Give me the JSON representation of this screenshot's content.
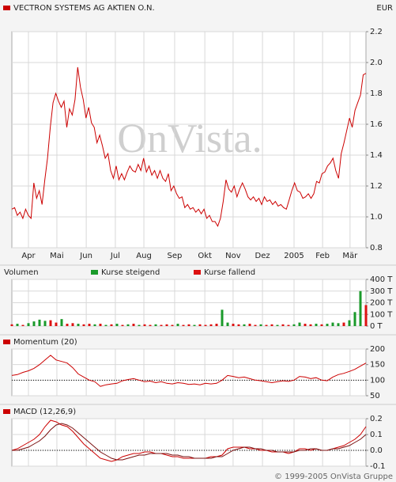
{
  "watermark": "OnVista.",
  "footer": "© 1999-2005 OnVista Gruppe",
  "chart_data": [
    {
      "type": "line",
      "title": "VECTRON SYSTEMS AG AKTIEN O.N.",
      "currency": "EUR",
      "xlim": [
        0,
        129
      ],
      "xticks": [
        {
          "value": 6.05,
          "label": "Apr"
        },
        {
          "value": 16.4,
          "label": "Mai"
        },
        {
          "value": 27.1,
          "label": "Jun"
        },
        {
          "value": 37.7,
          "label": "Jul"
        },
        {
          "value": 48.1,
          "label": "Aug"
        },
        {
          "value": 59.3,
          "label": "Sep"
        },
        {
          "value": 70.3,
          "label": "Okt"
        },
        {
          "value": 80.6,
          "label": "Nov"
        },
        {
          "value": 91.3,
          "label": "Dez"
        },
        {
          "value": 102.8,
          "label": "2005"
        },
        {
          "value": 113.2,
          "label": "Feb"
        },
        {
          "value": 123.2,
          "label": "Mär"
        }
      ],
      "ylim": [
        0.8,
        2.2
      ],
      "yticks": [
        0.8,
        {
          "value": 1,
          "label": "1.0"
        },
        1.2,
        1.4,
        1.6,
        1.8,
        {
          "value": 2,
          "label": "2.0"
        },
        2.2
      ],
      "grid": true,
      "series": [
        {
          "color": "#cc0000",
          "values": [
            1.05,
            1.06,
            1.01,
            1.03,
            0.99,
            1.05,
            1.01,
            0.99,
            1.22,
            1.12,
            1.17,
            1.08,
            1.24,
            1.38,
            1.58,
            1.74,
            1.8,
            1.75,
            1.71,
            1.75,
            1.58,
            1.7,
            1.66,
            1.76,
            1.97,
            1.84,
            1.76,
            1.64,
            1.71,
            1.61,
            1.58,
            1.48,
            1.53,
            1.46,
            1.38,
            1.41,
            1.3,
            1.25,
            1.33,
            1.24,
            1.28,
            1.24,
            1.29,
            1.33,
            1.3,
            1.29,
            1.34,
            1.3,
            1.38,
            1.29,
            1.33,
            1.27,
            1.3,
            1.25,
            1.3,
            1.25,
            1.23,
            1.28,
            1.17,
            1.2,
            1.15,
            1.12,
            1.13,
            1.06,
            1.08,
            1.05,
            1.06,
            1.03,
            1.05,
            1.02,
            1.05,
            0.99,
            1.01,
            0.97,
            0.97,
            0.94,
            0.99,
            1.1,
            1.24,
            1.18,
            1.16,
            1.2,
            1.13,
            1.18,
            1.22,
            1.18,
            1.13,
            1.11,
            1.13,
            1.1,
            1.12,
            1.08,
            1.13,
            1.1,
            1.11,
            1.08,
            1.1,
            1.07,
            1.08,
            1.06,
            1.05,
            1.11,
            1.17,
            1.22,
            1.17,
            1.16,
            1.12,
            1.13,
            1.15,
            1.12,
            1.15,
            1.23,
            1.22,
            1.28,
            1.29,
            1.33,
            1.35,
            1.38,
            1.3,
            1.25,
            1.41,
            1.48,
            1.56,
            1.64,
            1.58,
            1.69,
            1.74,
            1.79,
            1.92,
            1.93
          ]
        }
      ]
    },
    {
      "type": "bar",
      "title": "Volumen",
      "xlim": [
        0,
        64
      ],
      "ylim": [
        0,
        400
      ],
      "yticks": [
        {
          "value": 0,
          "label": "0 T"
        },
        {
          "value": 100,
          "label": "100 T"
        },
        {
          "value": 200,
          "label": "200 T"
        },
        {
          "value": 300,
          "label": "300 T"
        },
        {
          "value": 400,
          "label": "400 T"
        }
      ],
      "grid": true,
      "series": [
        {
          "name": "Kurse steigend",
          "color": "#1a9a2a",
          "values": [
            null,
            20,
            null,
            25,
            40,
            55,
            45,
            null,
            null,
            60,
            null,
            null,
            20,
            null,
            null,
            15,
            null,
            10,
            null,
            20,
            null,
            15,
            null,
            10,
            null,
            null,
            15,
            null,
            null,
            null,
            20,
            null,
            null,
            10,
            null,
            null,
            null,
            null,
            140,
            30,
            null,
            null,
            15,
            null,
            null,
            15,
            null,
            null,
            10,
            null,
            null,
            15,
            30,
            null,
            null,
            20,
            null,
            20,
            30,
            25,
            null,
            50,
            120,
            300,
            null
          ]
        },
        {
          "name": "Kurse fallend",
          "color": "#dd1111",
          "values": [
            15,
            null,
            10,
            null,
            null,
            null,
            null,
            50,
            30,
            null,
            20,
            25,
            null,
            15,
            20,
            null,
            20,
            null,
            15,
            null,
            10,
            null,
            20,
            null,
            15,
            10,
            null,
            10,
            15,
            10,
            null,
            10,
            15,
            null,
            15,
            10,
            15,
            20,
            null,
            null,
            20,
            15,
            null,
            20,
            10,
            null,
            10,
            15,
            null,
            15,
            10,
            null,
            null,
            20,
            15,
            null,
            15,
            null,
            null,
            null,
            30,
            null,
            null,
            null,
            180
          ]
        }
      ]
    },
    {
      "type": "line",
      "title": "Momentum (20)",
      "xlim": [
        0,
        64
      ],
      "ylim": [
        50,
        200
      ],
      "yticks": [
        50,
        100,
        150,
        200
      ],
      "grid": true,
      "reference_line": 100,
      "series": [
        {
          "color": "#cc0000",
          "values": [
            115,
            118,
            125,
            130,
            138,
            150,
            165,
            180,
            165,
            160,
            155,
            140,
            120,
            110,
            100,
            95,
            80,
            85,
            88,
            90,
            98,
            102,
            105,
            100,
            95,
            97,
            92,
            95,
            90,
            88,
            92,
            90,
            86,
            88,
            85,
            90,
            88,
            90,
            100,
            115,
            112,
            108,
            110,
            105,
            100,
            98,
            95,
            92,
            95,
            98,
            96,
            100,
            112,
            110,
            105,
            108,
            100,
            98,
            110,
            118,
            122,
            128,
            135,
            145,
            155
          ]
        }
      ]
    },
    {
      "type": "line",
      "title": "MACD (12,26,9)",
      "xlim": [
        0,
        64
      ],
      "ylim": [
        -0.1,
        0.2
      ],
      "yticks": [
        -0.1,
        {
          "value": 0,
          "label": "0.0"
        },
        0.1,
        0.2
      ],
      "grid": true,
      "reference_line": 0,
      "series": [
        {
          "color": "#cc0000",
          "values": [
            0.0,
            0.01,
            0.03,
            0.05,
            0.07,
            0.1,
            0.15,
            0.19,
            0.18,
            0.16,
            0.15,
            0.12,
            0.08,
            0.04,
            0.01,
            -0.02,
            -0.05,
            -0.06,
            -0.07,
            -0.06,
            -0.04,
            -0.03,
            -0.02,
            -0.02,
            -0.01,
            -0.01,
            -0.02,
            -0.02,
            -0.03,
            -0.04,
            -0.04,
            -0.05,
            -0.05,
            -0.05,
            -0.05,
            -0.05,
            -0.04,
            -0.04,
            -0.03,
            0.01,
            0.02,
            0.02,
            0.02,
            0.01,
            0.01,
            0.0,
            0.0,
            -0.01,
            -0.01,
            -0.01,
            -0.02,
            -0.01,
            0.01,
            0.01,
            0.0,
            0.01,
            0.0,
            0.0,
            0.01,
            0.02,
            0.03,
            0.05,
            0.07,
            0.1,
            0.15
          ]
        },
        {
          "color": "#7a1010",
          "values": [
            0.0,
            0.0,
            0.01,
            0.02,
            0.04,
            0.06,
            0.09,
            0.13,
            0.16,
            0.17,
            0.16,
            0.14,
            0.11,
            0.08,
            0.05,
            0.02,
            -0.01,
            -0.03,
            -0.05,
            -0.06,
            -0.06,
            -0.05,
            -0.04,
            -0.03,
            -0.03,
            -0.02,
            -0.02,
            -0.02,
            -0.02,
            -0.03,
            -0.03,
            -0.04,
            -0.04,
            -0.05,
            -0.05,
            -0.05,
            -0.05,
            -0.04,
            -0.04,
            -0.02,
            0.0,
            0.01,
            0.02,
            0.02,
            0.01,
            0.01,
            0.0,
            0.0,
            -0.01,
            -0.01,
            -0.01,
            -0.01,
            0.0,
            0.0,
            0.01,
            0.01,
            0.0,
            0.0,
            0.01,
            0.01,
            0.02,
            0.03,
            0.05,
            0.07,
            0.1
          ]
        }
      ]
    }
  ]
}
